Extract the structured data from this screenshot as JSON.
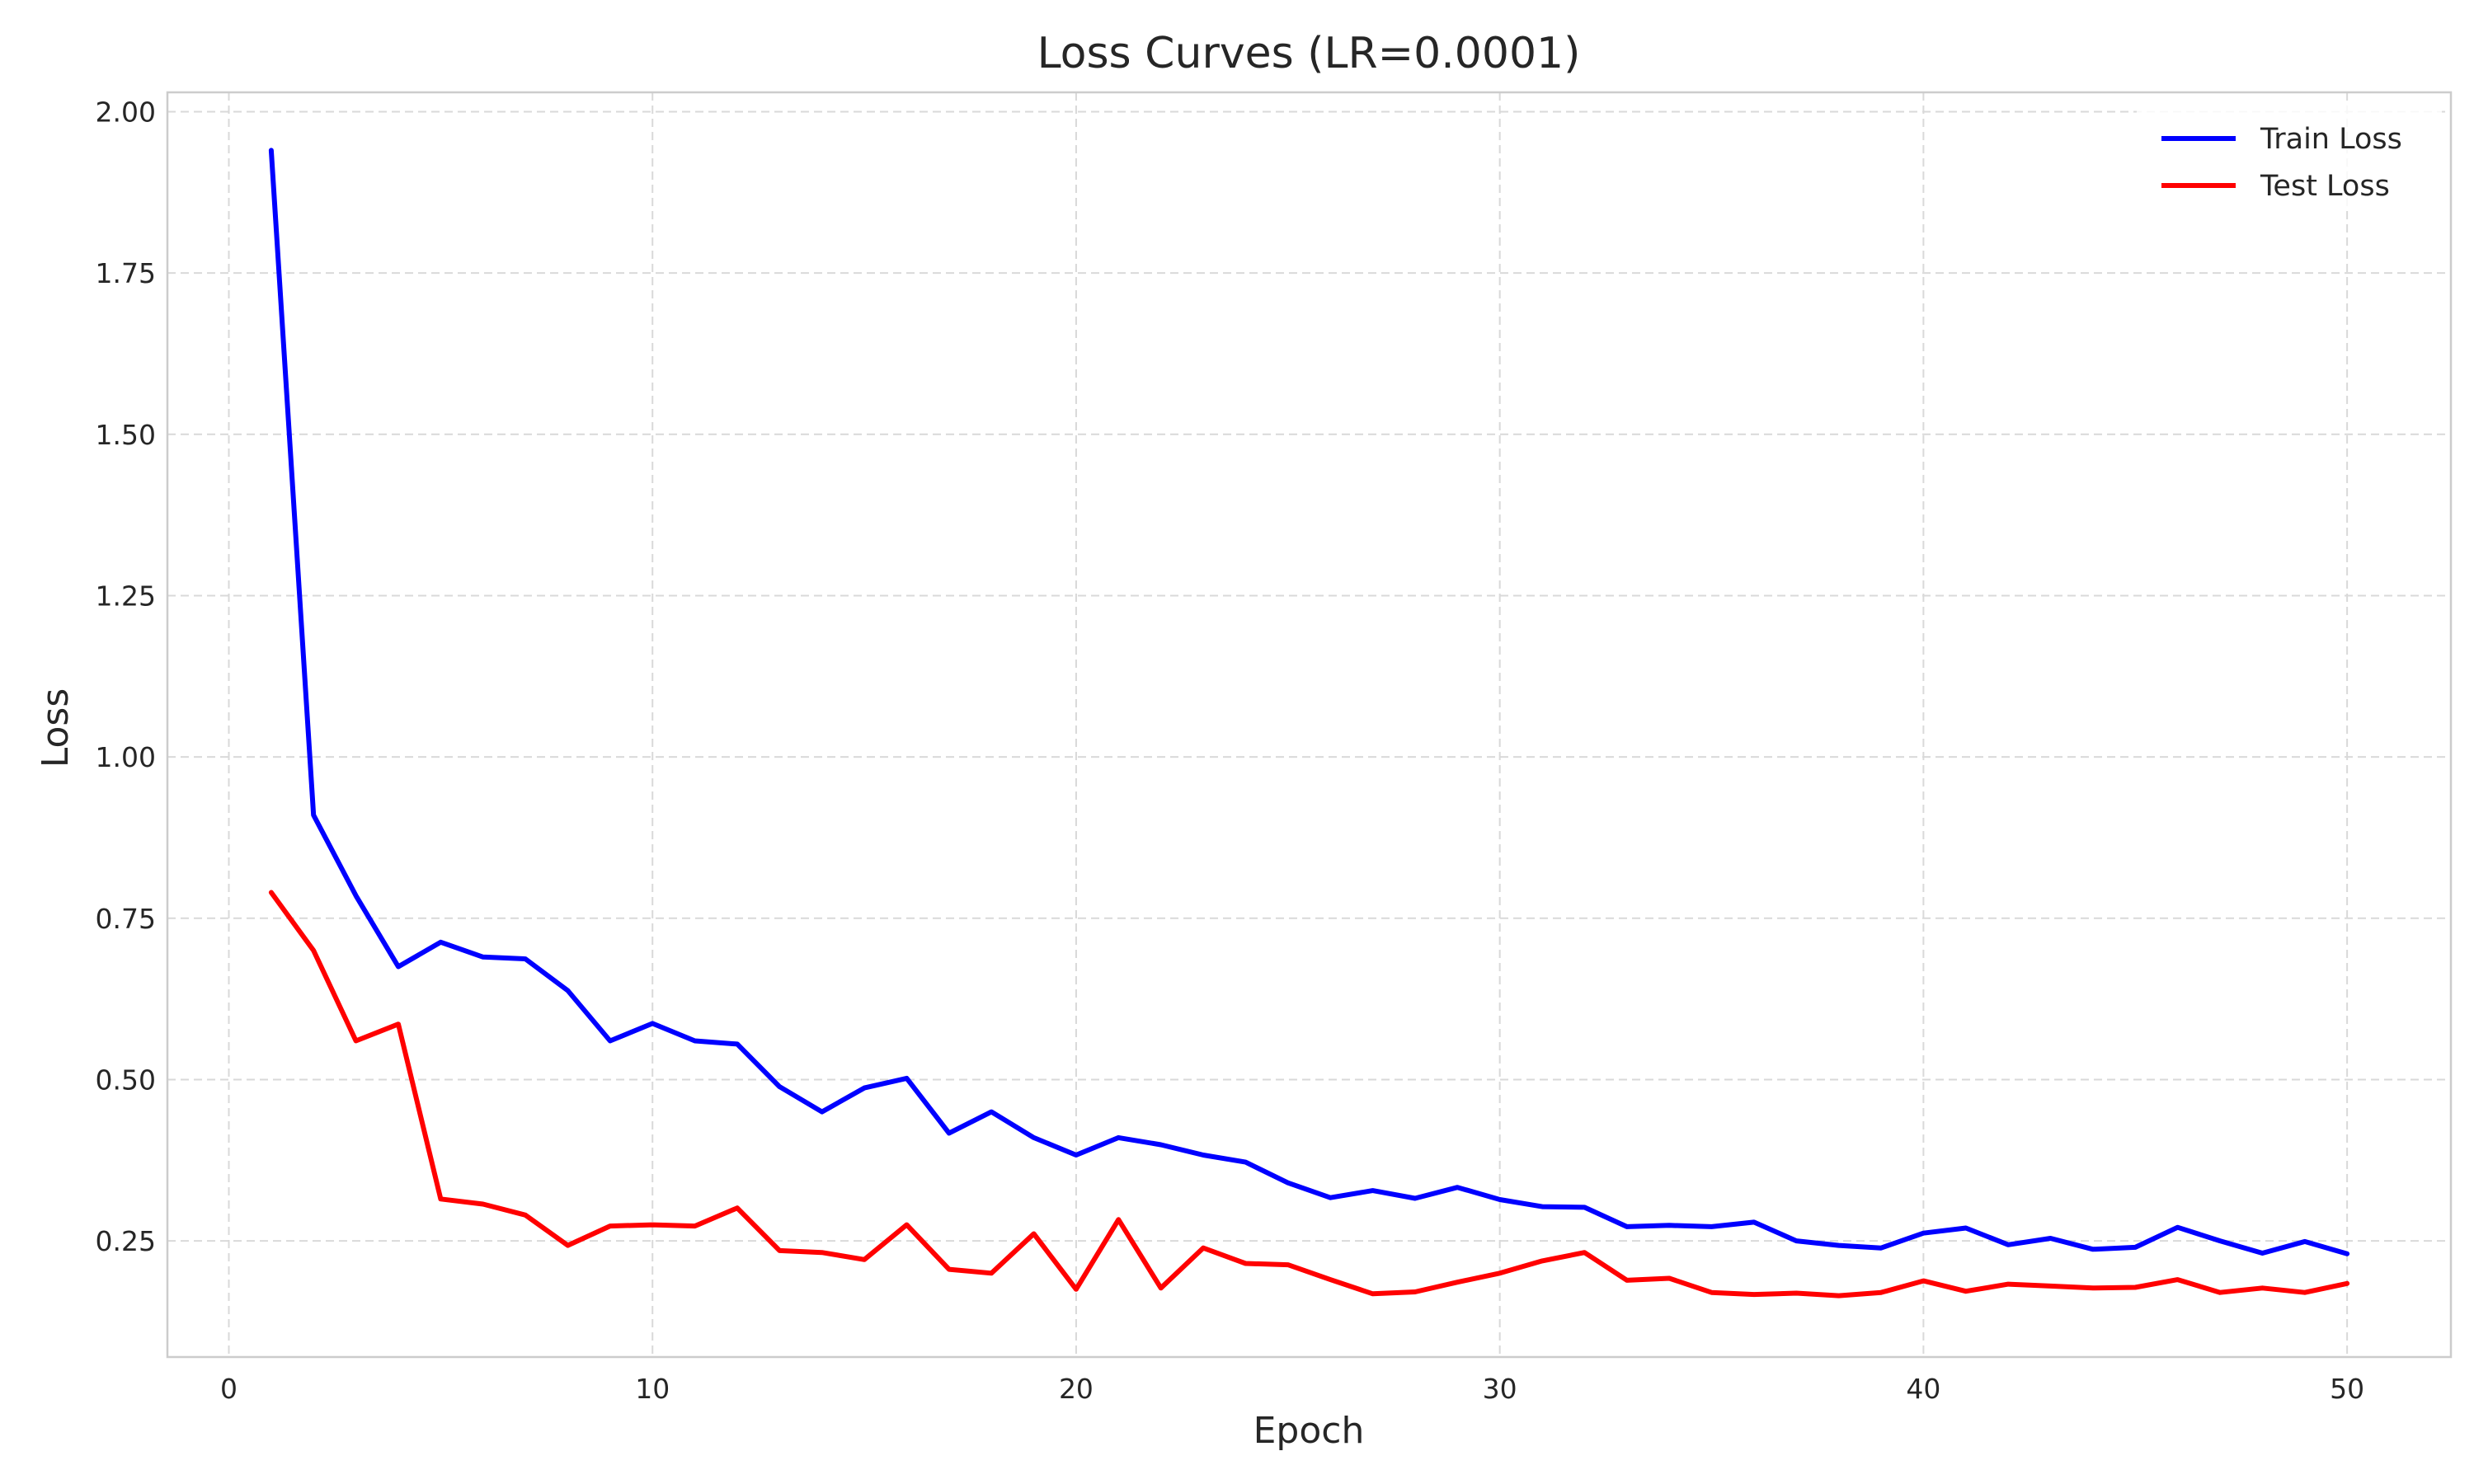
{
  "chart_data": {
    "type": "line",
    "title": "Loss Curves (LR=0.0001)",
    "xlabel": "Epoch",
    "ylabel": "Loss",
    "xlim": [
      -1.45,
      52.45
    ],
    "ylim": [
      0.07,
      2.03
    ],
    "xticks": [
      0,
      10,
      20,
      30,
      40,
      50
    ],
    "xtick_labels": [
      "0",
      "10",
      "20",
      "30",
      "40",
      "50"
    ],
    "yticks": [
      0.25,
      0.5,
      0.75,
      1.0,
      1.25,
      1.5,
      1.75,
      2.0
    ],
    "ytick_labels": [
      "0.25",
      "0.50",
      "0.75",
      "1.00",
      "1.25",
      "1.50",
      "1.75",
      "2.00"
    ],
    "grid": true,
    "legend_position": "top-right",
    "x": [
      1,
      2,
      3,
      4,
      5,
      6,
      7,
      8,
      9,
      10,
      11,
      12,
      13,
      14,
      15,
      16,
      17,
      18,
      19,
      20,
      21,
      22,
      23,
      24,
      25,
      26,
      27,
      28,
      29,
      30,
      31,
      32,
      33,
      34,
      35,
      36,
      37,
      38,
      39,
      40,
      41,
      42,
      43,
      44,
      45,
      46,
      47,
      48,
      49,
      50
    ],
    "series": [
      {
        "name": "Train Loss",
        "color": "#0000ff",
        "values": [
          1.94,
          0.91,
          0.785,
          0.675,
          0.713,
          0.69,
          0.687,
          0.638,
          0.56,
          0.587,
          0.56,
          0.555,
          0.489,
          0.45,
          0.487,
          0.502,
          0.417,
          0.45,
          0.41,
          0.383,
          0.41,
          0.399,
          0.383,
          0.372,
          0.34,
          0.317,
          0.328,
          0.316,
          0.333,
          0.314,
          0.303,
          0.302,
          0.272,
          0.274,
          0.272,
          0.279,
          0.25,
          0.243,
          0.239,
          0.262,
          0.27,
          0.244,
          0.254,
          0.237,
          0.24,
          0.271,
          0.25,
          0.231,
          0.249,
          0.23
        ]
      },
      {
        "name": "Test Loss",
        "color": "#ff0000",
        "values": [
          0.79,
          0.7,
          0.56,
          0.586,
          0.315,
          0.307,
          0.29,
          0.243,
          0.273,
          0.275,
          0.273,
          0.301,
          0.235,
          0.232,
          0.221,
          0.275,
          0.206,
          0.2,
          0.261,
          0.175,
          0.283,
          0.177,
          0.239,
          0.215,
          0.213,
          0.19,
          0.168,
          0.171,
          0.186,
          0.2,
          0.219,
          0.232,
          0.189,
          0.192,
          0.17,
          0.167,
          0.169,
          0.165,
          0.17,
          0.188,
          0.172,
          0.183,
          0.18,
          0.177,
          0.178,
          0.19,
          0.17,
          0.177,
          0.17,
          0.184
        ]
      }
    ]
  }
}
